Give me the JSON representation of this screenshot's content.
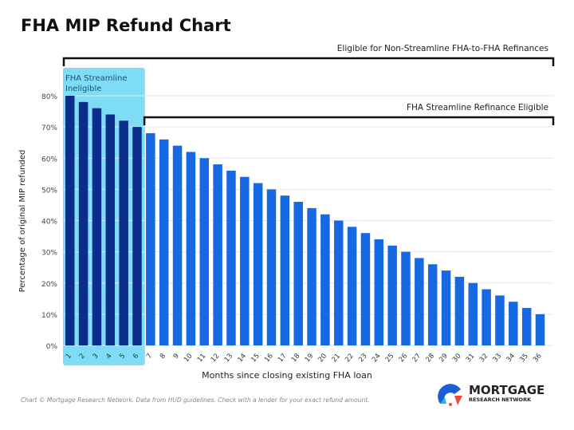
{
  "title": "FHA MIP Refund Chart",
  "footer": "Chart © Mortgage Research Network. Data from HUD guidelines. Check with a lender for your exact refund amount.",
  "logo": {
    "line1": "MORTGAGE",
    "line2": "RESEARCH NETWORK"
  },
  "colors": {
    "ineligible_bar": "#0b2e8c",
    "eligible_bar": "#1668e3",
    "highlight": "#7fdcf7",
    "bracket": "#111111"
  },
  "chart_data": {
    "type": "bar",
    "title": "FHA MIP Refund Chart",
    "xlabel": "Months since closing existing FHA loan",
    "ylabel": "Percentage of original MIP refunded",
    "ylim": [
      0,
      80
    ],
    "yticks": [
      "0%",
      "10%",
      "20%",
      "30%",
      "40%",
      "50%",
      "60%",
      "70%",
      "80%"
    ],
    "grid": true,
    "categories": [
      "1",
      "2",
      "3",
      "4",
      "5",
      "6",
      "7",
      "8",
      "9",
      "10",
      "11",
      "12",
      "13",
      "14",
      "15",
      "16",
      "17",
      "18",
      "19",
      "20",
      "21",
      "22",
      "23",
      "24",
      "25",
      "26",
      "27",
      "28",
      "29",
      "30",
      "31",
      "32",
      "33",
      "34",
      "35",
      "36"
    ],
    "values": [
      80,
      78,
      76,
      74,
      72,
      70,
      68,
      66,
      64,
      62,
      60,
      58,
      56,
      54,
      52,
      50,
      48,
      46,
      44,
      42,
      40,
      38,
      36,
      34,
      32,
      30,
      28,
      26,
      24,
      22,
      20,
      18,
      16,
      14,
      12,
      10
    ],
    "annotations": {
      "highlight_label": "FHA Streamline Ineligible",
      "highlight_months": [
        1,
        6
      ],
      "bracket_all": "Eligible for Non-Streamline FHA-to-FHA Refinances",
      "bracket_all_months": [
        1,
        36
      ],
      "bracket_streamline": "FHA Streamline Refinance Eligible",
      "bracket_streamline_months": [
        7,
        36
      ]
    }
  }
}
